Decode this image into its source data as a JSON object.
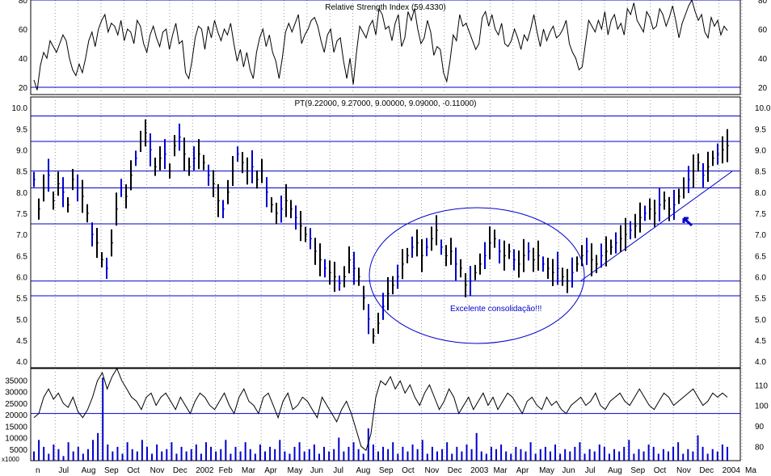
{
  "chart_data": [
    {
      "type": "line",
      "panel": "rsi",
      "title": "Relative Strength Index (59.4330)",
      "ylim": [
        15,
        80
      ],
      "yticks": [
        20,
        40,
        60,
        80
      ],
      "horizontal_lines": [
        20,
        80
      ],
      "grid": "vertical dotted",
      "series": [
        {
          "values": [
            25,
            18,
            35,
            44,
            40,
            52,
            48,
            44,
            50,
            56,
            52,
            40,
            32,
            28,
            36,
            30,
            40,
            52,
            58,
            48,
            60,
            66,
            70,
            58,
            64,
            62,
            56,
            66,
            52,
            60,
            58,
            50,
            66,
            62,
            50,
            44,
            56,
            62,
            54,
            48,
            58,
            60,
            46,
            56,
            64,
            50,
            52,
            30,
            26,
            38,
            54,
            62,
            60,
            46,
            62,
            54,
            66,
            58,
            52,
            60,
            56,
            64,
            50,
            38,
            46,
            34,
            44,
            32,
            26,
            44,
            54,
            60,
            48,
            56,
            44,
            38,
            26,
            40,
            58,
            64,
            58,
            64,
            70,
            50,
            56,
            60,
            66,
            68,
            62,
            52,
            44,
            56,
            60,
            44,
            52,
            54,
            38,
            26,
            40,
            22,
            44,
            62,
            58,
            54,
            62,
            66,
            56,
            74,
            70,
            60,
            62,
            52,
            64,
            70,
            48,
            54,
            72,
            66,
            74,
            60,
            50,
            54,
            66,
            58,
            42,
            48,
            46,
            30,
            24,
            38,
            56,
            52,
            70,
            62,
            64,
            58,
            52,
            46,
            50,
            68,
            72,
            62,
            70,
            60,
            56,
            64,
            50,
            48,
            52,
            60,
            54,
            46,
            56,
            52,
            60,
            70,
            58,
            48,
            60,
            52,
            58,
            62,
            54,
            56,
            60,
            66,
            50,
            44,
            40,
            32,
            34,
            50,
            66,
            62,
            58,
            66,
            60,
            72,
            56,
            66,
            70,
            60,
            64,
            56,
            74,
            70,
            78,
            66,
            62,
            58,
            72,
            68,
            60,
            62,
            74,
            70,
            62,
            68,
            76,
            66,
            54,
            64,
            70,
            76,
            80,
            72,
            66,
            70,
            58,
            54,
            68,
            62,
            66,
            56,
            62,
            59
          ]
        }
      ]
    },
    {
      "type": "bar",
      "panel": "price",
      "title": "PT(9.22000, 9.27000, 9.00000, 9.09000, -0.11000)",
      "ylim": [
        3.85,
        10.25
      ],
      "yticks": [
        "4.0",
        "4.5",
        "5.0",
        "5.5",
        "6.0",
        "6.5",
        "7.0",
        "7.5",
        "8.0",
        "8.5",
        "9.0",
        "9.5",
        "10.0"
      ],
      "horizontal_lines": [
        5.55,
        5.9,
        7.25,
        8.1,
        8.5,
        9.2,
        9.8
      ],
      "grid": "vertical dotted",
      "series": [
        {
          "values": [
            8.3,
            7.6,
            8.1,
            8.4,
            7.8,
            8.2,
            8.0,
            7.7,
            8.3,
            8.1,
            7.9,
            7.5,
            7.0,
            6.8,
            6.4,
            6.2,
            6.8,
            7.6,
            8.1,
            7.9,
            8.4,
            8.8,
            9.2,
            9.4,
            9.0,
            8.6,
            8.8,
            8.9,
            8.5,
            9.1,
            9.3,
            8.9,
            8.6,
            8.8,
            8.9,
            8.7,
            8.4,
            8.2,
            7.8,
            7.6,
            8.0,
            8.5,
            8.9,
            8.7,
            8.5,
            8.6,
            8.3,
            8.5,
            8.0,
            7.7,
            7.5,
            7.6,
            7.8,
            7.6,
            7.4,
            7.2,
            7.0,
            6.9,
            6.6,
            6.4,
            6.2,
            6.1,
            6.0,
            5.85,
            6.0,
            6.4,
            6.2,
            6.0,
            5.5,
            5.0,
            4.6,
            4.9,
            5.3,
            5.6,
            5.8,
            6.0,
            6.3,
            6.5,
            6.7,
            6.8,
            6.5,
            6.7,
            6.9,
            7.1,
            6.7,
            6.5,
            6.6,
            6.3,
            6.2,
            5.8,
            5.9,
            6.1,
            6.3,
            6.5,
            6.8,
            6.9,
            6.6,
            6.5,
            6.6,
            6.4,
            6.3,
            6.5,
            6.6,
            6.4,
            6.5,
            6.3,
            6.2,
            6.1,
            6.2,
            6.0,
            5.9,
            6.1,
            6.3,
            6.5,
            6.6,
            6.4,
            6.3,
            6.5,
            6.6,
            6.7,
            6.8,
            6.9,
            7.0,
            7.1,
            7.2,
            7.4,
            7.5,
            7.6,
            7.5,
            7.7,
            7.8,
            7.6,
            7.7,
            7.9,
            8.1,
            8.3,
            8.5,
            8.7,
            8.4,
            8.6,
            8.8,
            8.9,
            9.0,
            9.1
          ]
        }
      ],
      "annotations": [
        "Excelente consolidação!!!"
      ]
    },
    {
      "type": "bar",
      "panel": "volume",
      "ylabel": "x1000",
      "ylim": [
        0,
        40000
      ],
      "yticks_left": [
        "5000",
        "10000",
        "15000",
        "20000",
        "25000",
        "30000",
        "35000"
      ],
      "yticks_right": [
        "80",
        "90",
        "100",
        "110"
      ],
      "horizontal_lines": [
        20500
      ],
      "series": [
        {
          "name": "volume",
          "values": [
            4000,
            9000,
            6000,
            3000,
            7000,
            5000,
            2000,
            8000,
            4000,
            6000,
            3000,
            5000,
            9000,
            12000,
            36000,
            7000,
            4000,
            6000,
            3000,
            8000,
            5000,
            4000,
            9000,
            6000,
            3000,
            7000,
            4000,
            5000,
            8000,
            3000,
            6000,
            4000,
            5000,
            7000,
            3000,
            8000,
            6000,
            4000,
            5000,
            9000,
            3000,
            6000,
            4000,
            8000,
            5000,
            3000,
            7000,
            4000,
            6000,
            5000,
            9000,
            4000,
            3000,
            6000,
            8000,
            4000,
            5000,
            7000,
            3000,
            6000,
            4000,
            5000,
            10000,
            4000,
            6000,
            8000,
            5000,
            3000,
            14000,
            7000,
            4000,
            6000,
            5000,
            8000,
            3000,
            6000,
            4000,
            7000,
            5000,
            9000,
            3000,
            6000,
            4000,
            5000,
            8000,
            3000,
            6000,
            4000,
            7000,
            5000,
            12000,
            4000,
            3000,
            6000,
            5000,
            7000,
            4000,
            3000,
            6000,
            5000,
            4000,
            8000,
            3000,
            5000,
            6000,
            4000,
            7000,
            3000,
            5000,
            4000,
            6000,
            8000,
            3000,
            5000,
            4000,
            7000,
            6000,
            3000,
            5000,
            4000,
            6000,
            9000,
            3000,
            5000,
            4000,
            7000,
            6000,
            3000,
            5000,
            4000,
            6000,
            8000,
            3000,
            5000,
            4000,
            11000,
            6000,
            3000,
            5000,
            4000,
            7000,
            6000
          ]
        },
        {
          "name": "oscillator",
          "values": [
            94,
            96,
            104,
            108,
            103,
            106,
            101,
            99,
            104,
            97,
            94,
            98,
            104,
            112,
            116,
            108,
            114,
            118,
            112,
            108,
            104,
            102,
            98,
            104,
            106,
            100,
            104,
            106,
            102,
            98,
            104,
            100,
            96,
            102,
            106,
            104,
            100,
            98,
            102,
            106,
            100,
            96,
            104,
            108,
            102,
            100,
            96,
            104,
            106,
            100,
            94,
            102,
            106,
            98,
            100,
            104,
            102,
            98,
            94,
            104,
            100,
            96,
            92,
            98,
            102,
            96,
            88,
            80,
            78,
            86,
            104,
            112,
            110,
            114,
            108,
            112,
            106,
            110,
            104,
            100,
            106,
            110,
            104,
            98,
            102,
            108,
            104,
            96,
            100,
            104,
            98,
            102,
            106,
            100,
            104,
            98,
            102,
            106,
            104,
            100,
            96,
            102,
            104,
            100,
            98,
            104,
            100,
            102,
            98,
            96,
            100,
            102,
            104,
            100,
            102,
            106,
            100,
            98,
            102,
            104,
            106,
            102,
            100,
            104,
            108,
            104,
            100,
            98,
            102,
            106,
            104,
            100,
            102,
            104,
            106,
            108,
            104,
            100,
            102,
            106,
            104,
            106,
            104
          ]
        }
      ]
    },
    {
      "type": "time_axis",
      "x_tick_labels": [
        "n",
        "Jul",
        "Aug",
        "Sep",
        "Oct",
        "Nov",
        "Dec",
        "2002",
        "Feb",
        "Mar",
        "Apr",
        "May",
        "Jun",
        "Jul",
        "Aug",
        "Sep",
        "Oct",
        "Nov",
        "Dec",
        "2003",
        "Mar",
        "Apr",
        "May",
        "Jun",
        "Jul",
        "Aug",
        "Sep",
        "Oct",
        "Nov",
        "Dec",
        "2004",
        "Ma"
      ]
    }
  ]
}
